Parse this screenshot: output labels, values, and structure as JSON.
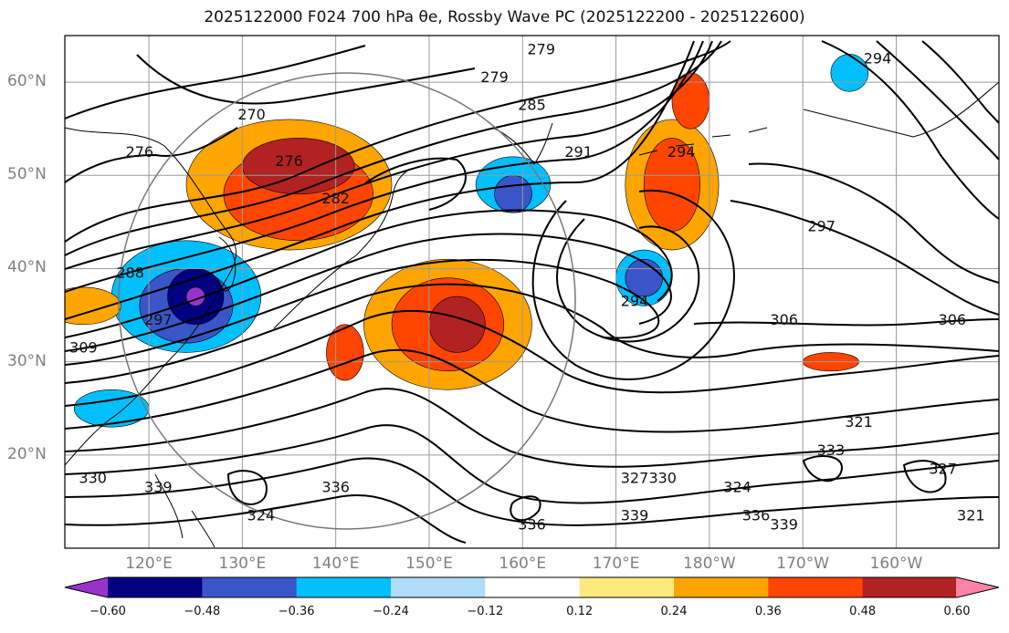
{
  "title": "2025122000 F024 700 hPa θe, Rossby Wave PC (2025122200 - 2025122600)",
  "map": {
    "projection": "lat-lon",
    "lon_range": [
      111,
      211
    ],
    "lat_range": [
      10,
      65
    ],
    "lat_ticks": [
      "20°N",
      "30°N",
      "40°N",
      "50°N",
      "60°N"
    ],
    "lon_ticks": [
      "120°E",
      "130°E",
      "140°E",
      "150°E",
      "160°E",
      "170°E",
      "180°W",
      "170°W",
      "160°W"
    ]
  },
  "contour_labels": [
    {
      "text": "279",
      "lon": 162,
      "lat": 63
    },
    {
      "text": "279",
      "lon": 157,
      "lat": 60
    },
    {
      "text": "285",
      "lon": 161,
      "lat": 57
    },
    {
      "text": "291",
      "lon": 166,
      "lat": 52
    },
    {
      "text": "294",
      "lon": 177,
      "lat": 52
    },
    {
      "text": "294",
      "lon": 198,
      "lat": 62
    },
    {
      "text": "270",
      "lon": 131,
      "lat": 56
    },
    {
      "text": "276",
      "lon": 119,
      "lat": 52
    },
    {
      "text": "276",
      "lon": 135,
      "lat": 51
    },
    {
      "text": "282",
      "lon": 140,
      "lat": 47
    },
    {
      "text": "288",
      "lon": 118,
      "lat": 39
    },
    {
      "text": "297",
      "lon": 121,
      "lat": 34
    },
    {
      "text": "309",
      "lon": 113,
      "lat": 31
    },
    {
      "text": "297",
      "lon": 192,
      "lat": 44
    },
    {
      "text": "294",
      "lon": 172,
      "lat": 36
    },
    {
      "text": "306",
      "lon": 188,
      "lat": 34
    },
    {
      "text": "306",
      "lon": 206,
      "lat": 34
    },
    {
      "text": "321",
      "lon": 196,
      "lat": 23
    },
    {
      "text": "333",
      "lon": 193,
      "lat": 20
    },
    {
      "text": "330",
      "lon": 175,
      "lat": 17
    },
    {
      "text": "324",
      "lon": 183,
      "lat": 16
    },
    {
      "text": "336",
      "lon": 185,
      "lat": 13
    },
    {
      "text": "339",
      "lon": 172,
      "lat": 13
    },
    {
      "text": "339",
      "lon": 188,
      "lat": 12
    },
    {
      "text": "336",
      "lon": 161,
      "lat": 12
    },
    {
      "text": "330",
      "lon": 114,
      "lat": 17
    },
    {
      "text": "339",
      "lon": 121,
      "lat": 16
    },
    {
      "text": "336",
      "lon": 140,
      "lat": 16
    },
    {
      "text": "324",
      "lon": 132,
      "lat": 13
    },
    {
      "text": "327",
      "lon": 172,
      "lat": 17
    },
    {
      "text": "321",
      "lon": 208,
      "lat": 13
    },
    {
      "text": "327",
      "lon": 205,
      "lat": 18
    }
  ],
  "shading_patches": [
    {
      "class": "0.48",
      "lon": 136,
      "lat": 51,
      "rx": 6,
      "ry": 3
    },
    {
      "class": "0.36",
      "lon": 136,
      "lat": 48,
      "rx": 8,
      "ry": 5
    },
    {
      "class": "0.24",
      "lon": 135,
      "lat": 49,
      "rx": 11,
      "ry": 7
    },
    {
      "class": "-0.48",
      "lon": 125,
      "lat": 37,
      "rx": 3,
      "ry": 3
    },
    {
      "class": "-0.36",
      "lon": 124,
      "lat": 36,
      "rx": 5,
      "ry": 4
    },
    {
      "class": "-0.24",
      "lon": 124,
      "lat": 37,
      "rx": 8,
      "ry": 6
    },
    {
      "class": "-0.60",
      "lon": 125,
      "lat": 37,
      "rx": 1,
      "ry": 1
    },
    {
      "class": "0.36",
      "lon": 152,
      "lat": 34,
      "rx": 6,
      "ry": 5
    },
    {
      "class": "0.48",
      "lon": 153,
      "lat": 34,
      "rx": 3,
      "ry": 3
    },
    {
      "class": "0.24",
      "lon": 152,
      "lat": 34,
      "rx": 9,
      "ry": 7
    },
    {
      "class": "-0.36",
      "lon": 173,
      "lat": 39,
      "rx": 2,
      "ry": 2
    },
    {
      "class": "-0.24",
      "lon": 173,
      "lat": 39,
      "rx": 3,
      "ry": 3
    },
    {
      "class": "0.36",
      "lon": 176,
      "lat": 49,
      "rx": 3,
      "ry": 5
    },
    {
      "class": "0.24",
      "lon": 176,
      "lat": 49,
      "rx": 5,
      "ry": 7
    },
    {
      "class": "0.36",
      "lon": 178,
      "lat": 58,
      "rx": 2,
      "ry": 3
    },
    {
      "class": "-0.24",
      "lon": 159,
      "lat": 49,
      "rx": 4,
      "ry": 3
    },
    {
      "class": "-0.36",
      "lon": 159,
      "lat": 48,
      "rx": 2,
      "ry": 2
    },
    {
      "class": "0.24",
      "lon": 113,
      "lat": 36,
      "rx": 4,
      "ry": 2
    },
    {
      "class": "-0.24",
      "lon": 116,
      "lat": 25,
      "rx": 4,
      "ry": 2
    },
    {
      "class": "0.36",
      "lon": 141,
      "lat": 31,
      "rx": 2,
      "ry": 3
    },
    {
      "class": "0.36",
      "lon": 193,
      "lat": 30,
      "rx": 3,
      "ry": 1
    },
    {
      "class": "-0.24",
      "lon": 195,
      "lat": 61,
      "rx": 2,
      "ry": 2
    }
  ],
  "colorbar": {
    "colors": [
      "#9932cc",
      "#000080",
      "#3a55c8",
      "#00bfff",
      "#afdcf8",
      "#ffffff",
      "#ffe97f",
      "#ffa500",
      "#ff4500",
      "#b22222",
      "#ff83a8"
    ],
    "labels": [
      "−0.60",
      "−0.48",
      "−0.36",
      "−0.24",
      "−0.12",
      "0.12",
      "0.24",
      "0.36",
      "0.48",
      "0.60"
    ]
  }
}
